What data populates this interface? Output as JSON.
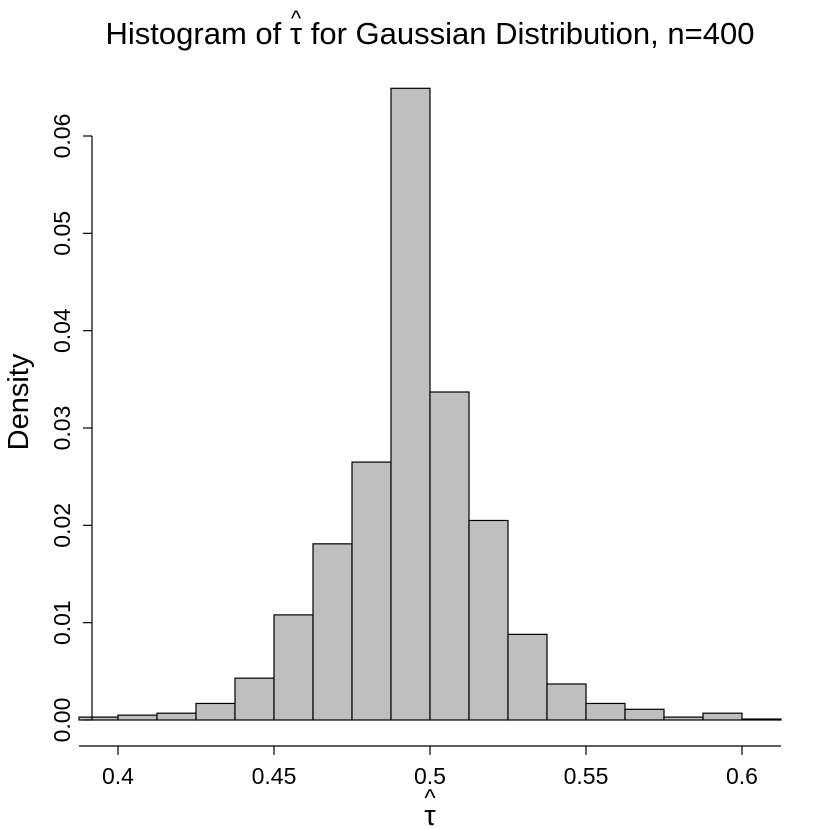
{
  "chart_data": {
    "type": "bar",
    "title": "Histogram of τ̂ for Gaussian Distribution, n=400",
    "title_prefix": "Histogram of ",
    "title_symbol": "τ",
    "title_hat": "^",
    "title_suffix": " for Gaussian Distribution, n=400",
    "xlabel": "τ",
    "xlabel_hat": "^",
    "ylabel": "Density",
    "bin_width": 0.0125,
    "bins": [
      {
        "start": 0.3875,
        "end": 0.4,
        "density": 0.0003
      },
      {
        "start": 0.4,
        "end": 0.4125,
        "density": 0.0005
      },
      {
        "start": 0.4125,
        "end": 0.425,
        "density": 0.0007
      },
      {
        "start": 0.425,
        "end": 0.4375,
        "density": 0.0017
      },
      {
        "start": 0.4375,
        "end": 0.45,
        "density": 0.0043
      },
      {
        "start": 0.45,
        "end": 0.4625,
        "density": 0.0108
      },
      {
        "start": 0.4625,
        "end": 0.475,
        "density": 0.0181
      },
      {
        "start": 0.475,
        "end": 0.4875,
        "density": 0.0265
      },
      {
        "start": 0.4875,
        "end": 0.5,
        "density": 0.0649
      },
      {
        "start": 0.5,
        "end": 0.5125,
        "density": 0.0337
      },
      {
        "start": 0.5125,
        "end": 0.525,
        "density": 0.0205
      },
      {
        "start": 0.525,
        "end": 0.5375,
        "density": 0.0088
      },
      {
        "start": 0.5375,
        "end": 0.55,
        "density": 0.0037
      },
      {
        "start": 0.55,
        "end": 0.5625,
        "density": 0.0017
      },
      {
        "start": 0.5625,
        "end": 0.575,
        "density": 0.0011
      },
      {
        "start": 0.575,
        "end": 0.5875,
        "density": 0.0003
      },
      {
        "start": 0.5875,
        "end": 0.6,
        "density": 0.0007
      },
      {
        "start": 0.6,
        "end": 0.6125,
        "density": 0.0001
      }
    ],
    "xlim": [
      0.3875,
      0.6125
    ],
    "ylim": [
      0,
      0.065
    ],
    "x_ticks": [
      0.4,
      0.45,
      0.5,
      0.55,
      0.6
    ],
    "x_tick_labels": [
      "0.4",
      "0.45",
      "0.5",
      "0.55",
      "0.6"
    ],
    "y_ticks": [
      0,
      0.01,
      0.02,
      0.03,
      0.04,
      0.05,
      0.06
    ],
    "y_tick_labels": [
      "0.00",
      "0.01",
      "0.02",
      "0.03",
      "0.04",
      "0.05",
      "0.06"
    ],
    "grid": false,
    "legend": "none",
    "colors": {
      "bar_fill": "#bfbfbf",
      "bar_edge": "#000000"
    }
  }
}
